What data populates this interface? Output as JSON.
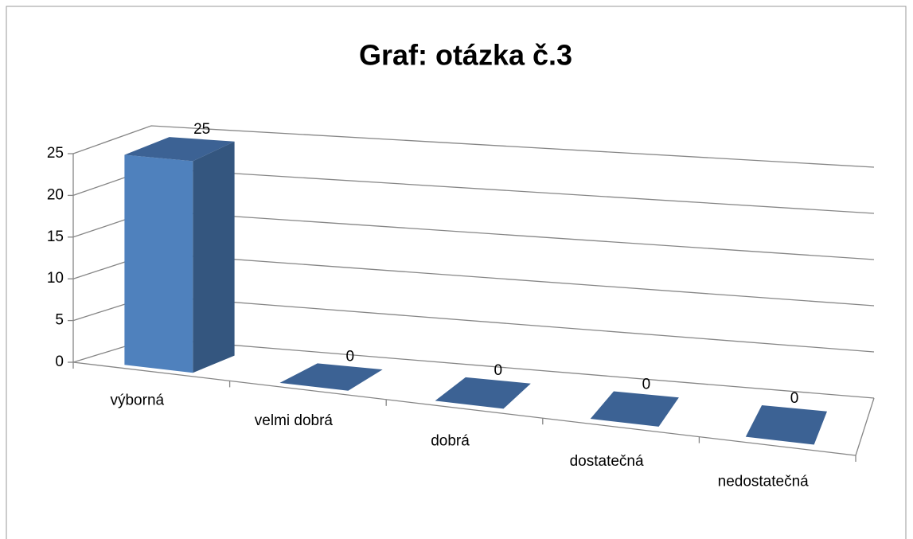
{
  "chart_data": {
    "type": "bar3d",
    "title": "Graf: otázka č.3",
    "categories": [
      "výborná",
      "velmi dobrá",
      "dobrá",
      "dostatečná",
      "nedostatečná"
    ],
    "values": [
      25,
      0,
      0,
      0,
      0
    ],
    "color": "#4f81bd",
    "ylim": [
      0,
      25
    ],
    "yticks": [
      0,
      5,
      10,
      15,
      20,
      25
    ],
    "grid": true
  }
}
